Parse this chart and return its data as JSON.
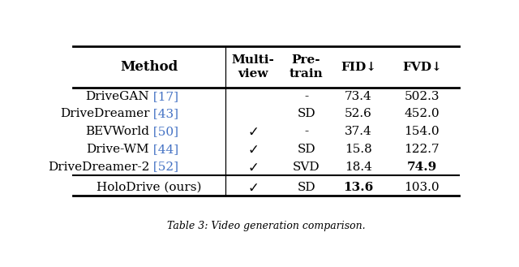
{
  "title": "Table 3: Video generation comparison.",
  "col_headers": [
    "Method",
    "Multi-\nview",
    "Pre-\ntrain",
    "FID↓",
    "FVD↓"
  ],
  "rows": [
    {
      "method": "DriveGAN",
      "ref": " [17]",
      "multiview": false,
      "pretrain": "-",
      "fid": "73.4",
      "fvd": "502.3",
      "fid_bold": false,
      "fvd_bold": false
    },
    {
      "method": "DriveDreamer",
      "ref": " [43]",
      "multiview": false,
      "pretrain": "SD",
      "fid": "52.6",
      "fvd": "452.0",
      "fid_bold": false,
      "fvd_bold": false
    },
    {
      "method": "BEVWorld",
      "ref": " [50]",
      "multiview": true,
      "pretrain": "-",
      "fid": "37.4",
      "fvd": "154.0",
      "fid_bold": false,
      "fvd_bold": false
    },
    {
      "method": "Drive-WM",
      "ref": " [44]",
      "multiview": true,
      "pretrain": "SD",
      "fid": "15.8",
      "fvd": "122.7",
      "fid_bold": false,
      "fvd_bold": false
    },
    {
      "method": "DriveDreamer-2",
      "ref": " [52]",
      "multiview": true,
      "pretrain": "SVD",
      "fid": "18.4",
      "fvd": "74.9",
      "fid_bold": false,
      "fvd_bold": true
    }
  ],
  "ours": {
    "method": "HoloDrive (ours)",
    "ref": "",
    "multiview": true,
    "pretrain": "SD",
    "fid": "13.6",
    "fvd": "103.0",
    "fid_bold": true,
    "fvd_bold": false
  },
  "ref_color": "#4472C4",
  "text_color": "#000000",
  "bg_color": "#ffffff",
  "figsize": [
    6.4,
    3.29
  ],
  "dpi": 100
}
